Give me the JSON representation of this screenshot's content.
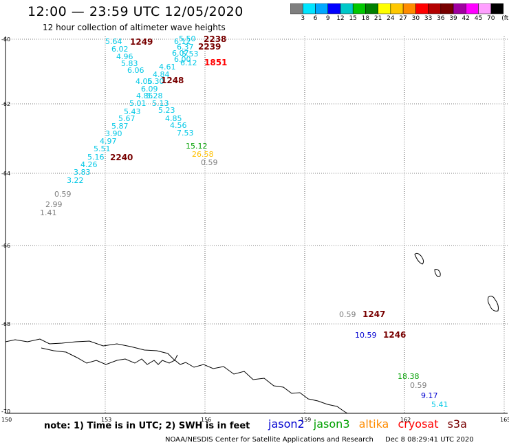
{
  "header": {
    "title": "12:00 — 23:59 UTC 12/05/2020",
    "subtitle": "12 hour collection of altimeter wave heights"
  },
  "colorbar": {
    "colors": [
      "#7f7f7f",
      "#00e5ff",
      "#00a8ff",
      "#0000ff",
      "#00c8c8",
      "#00c800",
      "#008000",
      "#ffff00",
      "#ffc800",
      "#ff8c00",
      "#ff0000",
      "#b40000",
      "#780000",
      "#a000a0",
      "#ff00ff",
      "#ffa0ff",
      "#000000"
    ],
    "labels": [
      "3",
      "6",
      "9",
      "12",
      "15",
      "18",
      "21",
      "24",
      "27",
      "30",
      "33",
      "36",
      "39",
      "42",
      "45",
      "70",
      "(ft)"
    ]
  },
  "axes": {
    "lat_labels": [
      "-60",
      "-62",
      "-64",
      "-66",
      "-68",
      "-70"
    ],
    "lon_labels": [
      "150",
      "153",
      "156",
      "159",
      "162",
      "165"
    ]
  },
  "points": [
    {
      "t": "5.64",
      "c": "#00c8e6"
    },
    {
      "t": "6.02",
      "c": "#00c8e6"
    },
    {
      "t": "4.96",
      "c": "#00c8e6"
    },
    {
      "t": "5.83",
      "c": "#00c8e6"
    },
    {
      "t": "6.06",
      "c": "#00c8e6"
    },
    {
      "t": "4.06",
      "c": "#00c8e6"
    },
    {
      "t": "5.30",
      "c": "#00c8e6"
    },
    {
      "t": "6.09",
      "c": "#00c8e6"
    },
    {
      "t": "4.85",
      "c": "#00c8e6"
    },
    {
      "t": "5.28",
      "c": "#00c8e6"
    },
    {
      "t": "5.01",
      "c": "#00c8e6"
    },
    {
      "t": "5.13",
      "c": "#00c8e6"
    },
    {
      "t": "5.43",
      "c": "#00c8e6"
    },
    {
      "t": "5.23",
      "c": "#00c8e6"
    },
    {
      "t": "5.67",
      "c": "#00c8e6"
    },
    {
      "t": "4.85",
      "c": "#00c8e6"
    },
    {
      "t": "5.87",
      "c": "#00c8e6"
    },
    {
      "t": "4.56",
      "c": "#00c8e6"
    },
    {
      "t": "3.90",
      "c": "#00c8e6"
    },
    {
      "t": "7.53",
      "c": "#00c8e6"
    },
    {
      "t": "4.97",
      "c": "#00c8e6"
    },
    {
      "t": "5.51",
      "c": "#00c8e6"
    },
    {
      "t": "5.16",
      "c": "#00c8e6"
    },
    {
      "t": "4.26",
      "c": "#00c8e6"
    },
    {
      "t": "3.83",
      "c": "#00c8e6"
    },
    {
      "t": "3.22",
      "c": "#00c8e6"
    },
    {
      "t": "5.50",
      "c": "#00c8e6"
    },
    {
      "t": "6.12",
      "c": "#00c8e6"
    },
    {
      "t": "6.37",
      "c": "#00c8e6"
    },
    {
      "t": "6.07",
      "c": "#00c8e6"
    },
    {
      "t": "5.53",
      "c": "#00c8e6"
    },
    {
      "t": "6.00",
      "c": "#00c8e6"
    },
    {
      "t": "6.12",
      "c": "#00c8e6"
    },
    {
      "t": "4.61",
      "c": "#00c8e6"
    },
    {
      "t": "4.84",
      "c": "#00c8e6"
    },
    {
      "t": "0.59",
      "c": "#7f7f7f"
    },
    {
      "t": "2.99",
      "c": "#7f7f7f"
    },
    {
      "t": "1.41",
      "c": "#7f7f7f"
    },
    {
      "t": "15.12",
      "c": "#00a000"
    },
    {
      "t": "26.58",
      "c": "#ffc000"
    },
    {
      "t": "0.59",
      "c": "#7f7f7f"
    },
    {
      "t": "0.59",
      "c": "#7f7f7f"
    },
    {
      "t": "10.59",
      "c": "#0000d0"
    },
    {
      "t": "18.38",
      "c": "#00a000"
    },
    {
      "t": "0.59",
      "c": "#7f7f7f"
    },
    {
      "t": "9.17",
      "c": "#0000d0"
    },
    {
      "t": "5.41",
      "c": "#00c8e6"
    }
  ],
  "times": [
    {
      "t": "1249",
      "c": "#780000"
    },
    {
      "t": "2238",
      "c": "#780000"
    },
    {
      "t": "2239",
      "c": "#780000"
    },
    {
      "t": "1851",
      "c": "#ff0000"
    },
    {
      "t": "1248",
      "c": "#780000"
    },
    {
      "t": "2240",
      "c": "#780000"
    },
    {
      "t": "1247",
      "c": "#780000"
    },
    {
      "t": "1246",
      "c": "#780000"
    }
  ],
  "note": "note: 1) Time is in UTC; 2) SWH is in feet",
  "legend": [
    {
      "label": "jason2",
      "color": "#0000d0"
    },
    {
      "label": "jason3",
      "color": "#00a000"
    },
    {
      "label": "altika",
      "color": "#ff8c00"
    },
    {
      "label": "cryosat",
      "color": "#ff0000"
    },
    {
      "label": "s3a",
      "color": "#780000"
    }
  ],
  "footer": {
    "org": "NOAA/NESDIS Center for Satellite Applications and Research",
    "timestamp": "Dec  8 08:29:41 UTC 2020"
  }
}
